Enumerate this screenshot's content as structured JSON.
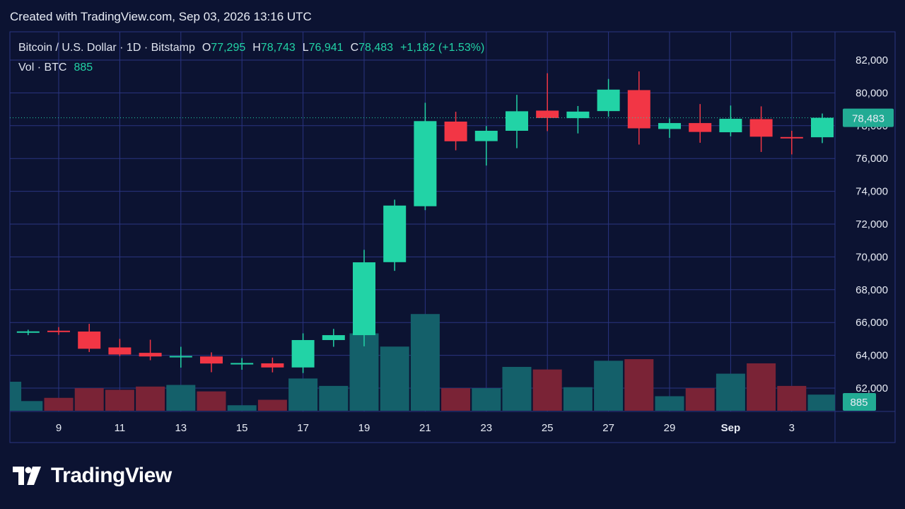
{
  "caption": "Created with TradingView.com, Sep 03, 2026 13:16 UTC",
  "brand": {
    "name": "TradingView",
    "icon": "tradingview-logo-icon"
  },
  "legend": {
    "symbol": "Bitcoin / U.S. Dollar · 1D · Bitstamp",
    "o_label": "O",
    "o_value": "77,295",
    "h_label": "H",
    "h_value": "78,743",
    "l_label": "L",
    "l_value": "76,941",
    "c_label": "C",
    "c_value": "78,483",
    "change": "+1,182 (+1.53%)",
    "vol_label": "Vol · BTC",
    "vol_value": "885"
  },
  "colors": {
    "background": "#0c1332",
    "grid": "#2a3480",
    "up": "#22d3a6",
    "down": "#f23645",
    "vol_up": "#14606a",
    "vol_down": "#7a2336",
    "price_tag": "#22ab94",
    "text": "#e8ecf5"
  },
  "chart_data": {
    "type": "candlestick",
    "price_axis": {
      "ticks": [
        "62,000",
        "64,000",
        "66,000",
        "68,000",
        "70,000",
        "72,000",
        "74,000",
        "76,000",
        "78,000",
        "80,000",
        "82,000"
      ],
      "tick_values": [
        62000,
        64000,
        66000,
        68000,
        70000,
        72000,
        74000,
        76000,
        78000,
        80000,
        82000
      ],
      "range": [
        61000,
        82600
      ]
    },
    "time_axis": {
      "ticks": [
        "9",
        "11",
        "13",
        "15",
        "17",
        "19",
        "21",
        "23",
        "25",
        "27",
        "29",
        "Sep",
        "3"
      ],
      "tick_days": [
        9,
        11,
        13,
        15,
        17,
        19,
        21,
        23,
        25,
        27,
        29,
        31,
        33
      ]
    },
    "last_price_label": "78,483",
    "last_volume_label": "885",
    "candles": [
      {
        "d": 8,
        "o": 65420,
        "h": 65560,
        "l": 65230,
        "c": 65460
      },
      {
        "d": 9,
        "o": 65500,
        "h": 65720,
        "l": 65250,
        "c": 65420
      },
      {
        "d": 10,
        "o": 65450,
        "h": 65920,
        "l": 64200,
        "c": 64400
      },
      {
        "d": 11,
        "o": 64480,
        "h": 65000,
        "l": 63950,
        "c": 64050
      },
      {
        "d": 12,
        "o": 64150,
        "h": 64950,
        "l": 63700,
        "c": 63930
      },
      {
        "d": 13,
        "o": 63930,
        "h": 64520,
        "l": 63250,
        "c": 63960
      },
      {
        "d": 14,
        "o": 63930,
        "h": 64180,
        "l": 62970,
        "c": 63500
      },
      {
        "d": 15,
        "o": 63480,
        "h": 63830,
        "l": 63120,
        "c": 63530
      },
      {
        "d": 16,
        "o": 63510,
        "h": 63860,
        "l": 62960,
        "c": 63260
      },
      {
        "d": 17,
        "o": 63260,
        "h": 65340,
        "l": 62920,
        "c": 64930
      },
      {
        "d": 18,
        "o": 64930,
        "h": 65610,
        "l": 64520,
        "c": 65230
      },
      {
        "d": 19,
        "o": 65230,
        "h": 70430,
        "l": 64550,
        "c": 69670
      },
      {
        "d": 20,
        "o": 69680,
        "h": 73490,
        "l": 69150,
        "c": 73130
      },
      {
        "d": 21,
        "o": 73090,
        "h": 79400,
        "l": 72850,
        "c": 78280
      },
      {
        "d": 22,
        "o": 78250,
        "h": 78850,
        "l": 76500,
        "c": 77050
      },
      {
        "d": 23,
        "o": 77060,
        "h": 77980,
        "l": 75570,
        "c": 77690
      },
      {
        "d": 24,
        "o": 77690,
        "h": 79880,
        "l": 76630,
        "c": 78880
      },
      {
        "d": 25,
        "o": 78920,
        "h": 81200,
        "l": 77670,
        "c": 78470
      },
      {
        "d": 26,
        "o": 78460,
        "h": 79200,
        "l": 77530,
        "c": 78860
      },
      {
        "d": 27,
        "o": 78890,
        "h": 80850,
        "l": 78550,
        "c": 80200
      },
      {
        "d": 28,
        "o": 80170,
        "h": 81310,
        "l": 76850,
        "c": 77840
      },
      {
        "d": 29,
        "o": 77800,
        "h": 78440,
        "l": 77260,
        "c": 78160
      },
      {
        "d": 30,
        "o": 78160,
        "h": 79320,
        "l": 76960,
        "c": 77620
      },
      {
        "d": 31,
        "o": 77600,
        "h": 79230,
        "l": 77350,
        "c": 78420
      },
      {
        "d": 32,
        "o": 78400,
        "h": 79180,
        "l": 76400,
        "c": 77330
      },
      {
        "d": 33,
        "o": 77310,
        "h": 77690,
        "l": 76250,
        "c": 77300
      },
      {
        "d": 34,
        "o": 77295,
        "h": 78743,
        "l": 76941,
        "c": 78483
      }
    ],
    "volume": [
      {
        "d": 7.3,
        "v": 9
      },
      {
        "d": 8,
        "v": 3
      },
      {
        "d": 9,
        "v": 4
      },
      {
        "d": 10,
        "v": 7
      },
      {
        "d": 11,
        "v": 6.5
      },
      {
        "d": 12,
        "v": 7.5
      },
      {
        "d": 13,
        "v": 8
      },
      {
        "d": 14,
        "v": 6
      },
      {
        "d": 15,
        "v": 1.7
      },
      {
        "d": 16,
        "v": 3.4
      },
      {
        "d": 17,
        "v": 10
      },
      {
        "d": 18,
        "v": 7.7
      },
      {
        "d": 19,
        "v": 24
      },
      {
        "d": 20,
        "v": 19.9
      },
      {
        "d": 21,
        "v": 30
      },
      {
        "d": 22,
        "v": 7
      },
      {
        "d": 23,
        "v": 7
      },
      {
        "d": 24,
        "v": 13.6
      },
      {
        "d": 25,
        "v": 12.8
      },
      {
        "d": 26,
        "v": 7.3
      },
      {
        "d": 27,
        "v": 15.5
      },
      {
        "d": 28,
        "v": 16
      },
      {
        "d": 29,
        "v": 4.5
      },
      {
        "d": 30,
        "v": 7
      },
      {
        "d": 31,
        "v": 11.5
      },
      {
        "d": 32,
        "v": 14.7
      },
      {
        "d": 33,
        "v": 7.7
      },
      {
        "d": 34,
        "v": 5
      }
    ]
  }
}
